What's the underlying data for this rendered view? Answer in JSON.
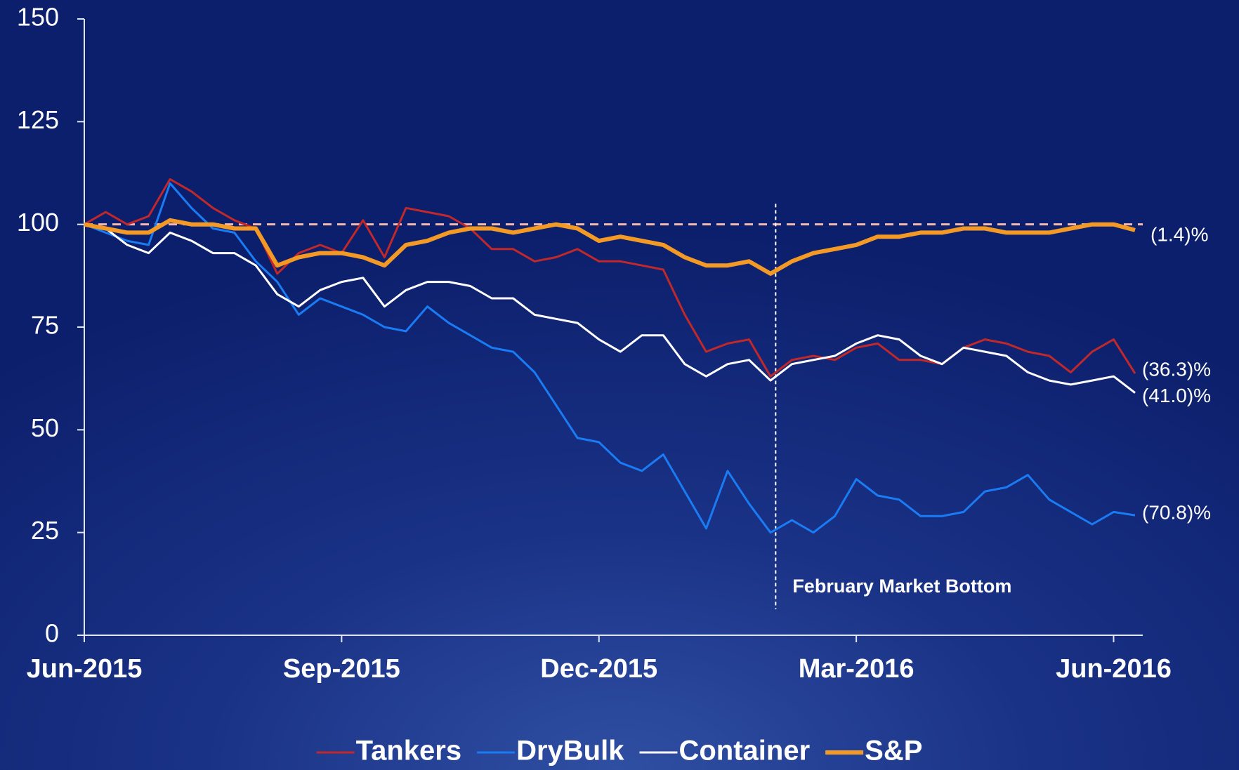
{
  "chart_data": {
    "type": "line",
    "x": [
      0,
      0.25,
      0.5,
      0.75,
      1,
      1.25,
      1.5,
      1.75,
      2,
      2.25,
      2.5,
      2.75,
      3,
      3.25,
      3.5,
      3.75,
      4,
      4.25,
      4.5,
      4.75,
      5,
      5.25,
      5.5,
      5.75,
      6,
      6.25,
      6.5,
      6.75,
      7,
      7.25,
      7.5,
      7.75,
      8,
      8.25,
      8.5,
      8.75,
      9,
      9.25,
      9.5,
      9.75,
      10,
      10.25,
      10.5,
      10.75,
      11,
      11.25,
      11.5,
      11.75,
      12,
      12.25
    ],
    "series": [
      {
        "name": "Tankers",
        "color": "#c0282a",
        "width": 3,
        "end_label": "(36.3)%",
        "values": [
          100,
          103,
          100,
          102,
          111,
          108,
          104,
          101,
          99,
          88,
          93,
          95,
          93,
          101,
          92,
          104,
          103,
          102,
          99,
          94,
          94,
          91,
          92,
          94,
          91,
          91,
          90,
          89,
          78,
          69,
          71,
          72,
          63,
          67,
          68,
          67,
          70,
          71,
          67,
          67,
          66,
          70,
          72,
          71,
          69,
          68,
          64,
          69,
          72,
          63.7
        ]
      },
      {
        "name": "DryBulk",
        "color": "#1a7cf5",
        "width": 3,
        "end_label": "(70.8)%",
        "values": [
          100,
          98,
          96,
          95,
          110,
          104,
          99,
          98,
          91,
          86,
          78,
          82,
          80,
          78,
          75,
          74,
          80,
          76,
          73,
          70,
          69,
          64,
          56,
          48,
          47,
          42,
          40,
          44,
          35,
          26,
          40,
          32,
          25,
          28,
          25,
          29,
          38,
          34,
          33,
          29,
          29,
          30,
          35,
          36,
          39,
          33,
          30,
          27,
          30,
          29.2
        ]
      },
      {
        "name": "Container",
        "color": "#ffffff",
        "width": 3,
        "end_label": "(41.0)%",
        "values": [
          100,
          99,
          95,
          93,
          98,
          96,
          93,
          93,
          90,
          83,
          80,
          84,
          86,
          87,
          80,
          84,
          86,
          86,
          85,
          82,
          82,
          78,
          77,
          76,
          72,
          69,
          73,
          73,
          66,
          63,
          66,
          67,
          62,
          66,
          67,
          68,
          71,
          73,
          72,
          68,
          66,
          70,
          69,
          68,
          64,
          62,
          61,
          62,
          63,
          59.0
        ]
      },
      {
        "name": "S&P",
        "color": "#f39a26",
        "width": 6,
        "end_label": "(1.4)%",
        "values": [
          100,
          99,
          98,
          98,
          101,
          100,
          100,
          99,
          99,
          90,
          92,
          93,
          93,
          92,
          90,
          95,
          96,
          98,
          99,
          99,
          98,
          99,
          100,
          99,
          96,
          97,
          96,
          95,
          92,
          90,
          90,
          91,
          88,
          91,
          93,
          94,
          95,
          97,
          97,
          98,
          98,
          99,
          99,
          98,
          98,
          98,
          99,
          100,
          100,
          98.6
        ]
      }
    ],
    "xlim": [
      0,
      12.34
    ],
    "xticks": [
      {
        "value": 0,
        "label": "Jun-2015"
      },
      {
        "value": 3,
        "label": "Sep-2015"
      },
      {
        "value": 6,
        "label": "Dec-2015"
      },
      {
        "value": 9,
        "label": "Mar-2016"
      },
      {
        "value": 12,
        "label": "Jun-2016"
      }
    ],
    "ylim": [
      0,
      150
    ],
    "yticks": [
      0,
      25,
      50,
      75,
      100,
      125,
      150
    ],
    "reference_line": {
      "value": 100,
      "color": "#f2b8b4"
    },
    "annotation": {
      "text": "February Market Bottom",
      "x": 8.06
    },
    "legend": "bottom"
  }
}
